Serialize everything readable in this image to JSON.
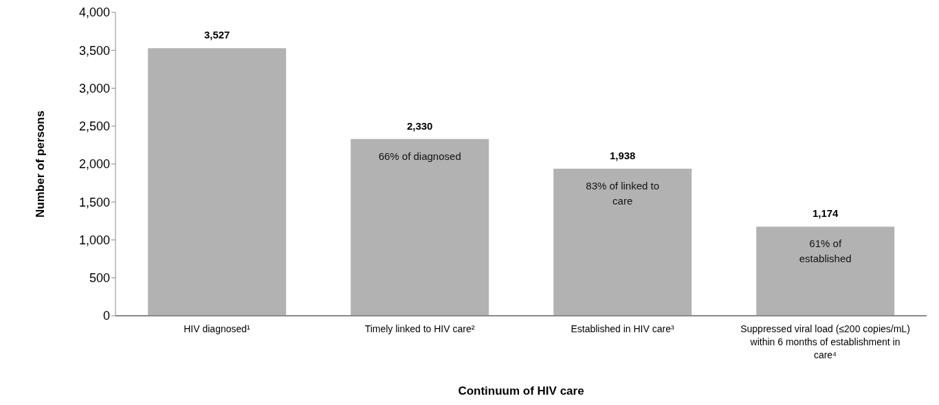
{
  "chart_data": {
    "type": "bar",
    "xlabel": "Continuum of HIV care",
    "ylabel": "Number of persons",
    "categories": [
      "HIV diagnosed¹",
      "Timely linked to HIV care²",
      "Established in HIV care³",
      "Suppressed viral load (≤200 copies/mL) within 6 months of establishment in care⁴"
    ],
    "values": [
      3527,
      2330,
      1938,
      1174
    ],
    "color": "#b2b2b2",
    "value_labels": [
      "3,527",
      "2,330",
      "1,938",
      "1,174"
    ],
    "ylim": [
      0,
      4000
    ],
    "yticks": [
      0,
      500,
      {
        "value": 1000,
        "label": "1,000"
      },
      {
        "value": 1500,
        "label": "1,500"
      },
      {
        "value": 2000,
        "label": "2,000"
      },
      {
        "value": 2500,
        "label": "2,500"
      },
      {
        "value": 3000,
        "label": "3,000"
      },
      {
        "value": 3500,
        "label": "3,500"
      },
      {
        "value": 4000,
        "label": "4,000"
      }
    ],
    "grid": false,
    "legend": false,
    "annotations": [
      {
        "text": "66% of diagnosed",
        "x": "Timely linked to HIV care²",
        "y": 2330
      },
      {
        "text": "83% of linked to care",
        "x": "Established in HIV care³",
        "y": 1938
      },
      {
        "text": "61% of established",
        "x": "Suppressed viral load (≤200 copies/mL) within 6 months of establishment in care⁴",
        "y": 1174
      }
    ]
  }
}
